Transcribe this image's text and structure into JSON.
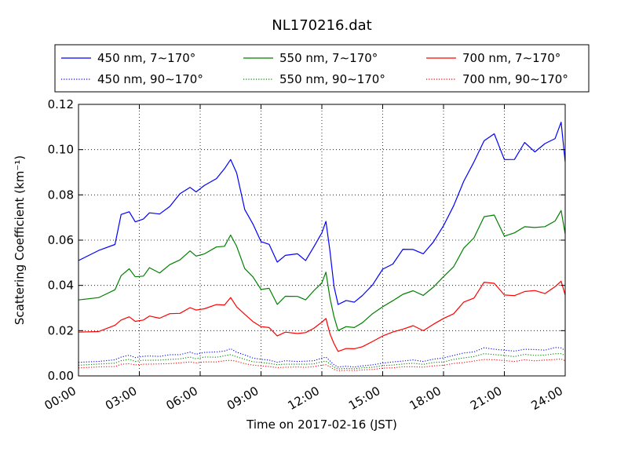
{
  "chart_data": {
    "type": "line",
    "title": "NL170216.dat",
    "xlabel": "Time on 2017-02-16 (JST)",
    "ylabel": "Scattering Coefficient (km⁻¹)",
    "xlim": [
      0,
      24
    ],
    "ylim": [
      0,
      0.12
    ],
    "x_ticks": [
      0,
      3,
      6,
      9,
      12,
      15,
      18,
      21,
      24
    ],
    "x_tick_labels": [
      "00:00",
      "03:00",
      "06:00",
      "09:00",
      "12:00",
      "15:00",
      "18:00",
      "21:00",
      "24:00"
    ],
    "y_ticks": [
      0,
      0.02,
      0.04,
      0.06,
      0.08,
      0.1,
      0.12
    ],
    "y_tick_labels": [
      "0.00",
      "0.02",
      "0.04",
      "0.06",
      "0.08",
      "0.10",
      "0.12"
    ],
    "grid": true,
    "legend_position": "top",
    "x": [
      0,
      1,
      1.8,
      2.1,
      2.5,
      2.8,
      3.2,
      3.5,
      4,
      4.5,
      5,
      5.5,
      5.8,
      6.2,
      6.8,
      7.2,
      7.5,
      7.8,
      8.2,
      8.6,
      9,
      9.4,
      9.8,
      10.2,
      10.8,
      11.2,
      11.6,
      12,
      12.2,
      12.4,
      12.6,
      12.8,
      13.2,
      13.6,
      14,
      14.5,
      15,
      15.5,
      16,
      16.5,
      17,
      17.5,
      18,
      18.5,
      19,
      19.5,
      20,
      20.5,
      21,
      21.5,
      22,
      22.5,
      23,
      23.5,
      23.8,
      24
    ],
    "series": [
      {
        "name": "450 nm, 7∼170°",
        "color": "#0000ff",
        "style": "solid",
        "values": [
          0.051,
          0.055,
          0.059,
          0.07,
          0.074,
          0.067,
          0.07,
          0.072,
          0.071,
          0.076,
          0.079,
          0.085,
          0.08,
          0.085,
          0.087,
          0.091,
          0.097,
          0.088,
          0.075,
          0.066,
          0.06,
          0.058,
          0.05,
          0.054,
          0.053,
          0.052,
          0.056,
          0.064,
          0.068,
          0.055,
          0.04,
          0.031,
          0.034,
          0.032,
          0.036,
          0.04,
          0.047,
          0.05,
          0.055,
          0.057,
          0.053,
          0.06,
          0.066,
          0.075,
          0.087,
          0.093,
          0.106,
          0.105,
          0.097,
          0.095,
          0.103,
          0.1,
          0.101,
          0.107,
          0.11,
          0.096
        ]
      },
      {
        "name": "550 nm, 7∼170°",
        "color": "#008000",
        "style": "solid",
        "values": [
          0.033,
          0.035,
          0.038,
          0.044,
          0.048,
          0.043,
          0.045,
          0.047,
          0.046,
          0.049,
          0.051,
          0.056,
          0.052,
          0.055,
          0.056,
          0.058,
          0.062,
          0.057,
          0.048,
          0.043,
          0.039,
          0.038,
          0.032,
          0.035,
          0.035,
          0.034,
          0.037,
          0.042,
          0.045,
          0.035,
          0.026,
          0.02,
          0.022,
          0.021,
          0.024,
          0.027,
          0.031,
          0.033,
          0.036,
          0.038,
          0.035,
          0.04,
          0.043,
          0.049,
          0.056,
          0.061,
          0.071,
          0.07,
          0.063,
          0.062,
          0.067,
          0.065,
          0.066,
          0.069,
          0.072,
          0.064
        ]
      },
      {
        "name": "700 nm, 7∼170°",
        "color": "#ff0000",
        "style": "solid",
        "values": [
          0.019,
          0.02,
          0.022,
          0.025,
          0.026,
          0.024,
          0.025,
          0.026,
          0.026,
          0.027,
          0.028,
          0.03,
          0.029,
          0.03,
          0.031,
          0.032,
          0.034,
          0.031,
          0.027,
          0.024,
          0.022,
          0.021,
          0.018,
          0.019,
          0.019,
          0.019,
          0.021,
          0.024,
          0.025,
          0.019,
          0.014,
          0.011,
          0.012,
          0.012,
          0.013,
          0.015,
          0.018,
          0.019,
          0.021,
          0.022,
          0.02,
          0.023,
          0.025,
          0.028,
          0.032,
          0.035,
          0.041,
          0.041,
          0.036,
          0.035,
          0.038,
          0.037,
          0.037,
          0.039,
          0.042,
          0.036
        ]
      },
      {
        "name": "450 nm, 90∼170°",
        "color": "#0000ff",
        "style": "dotted",
        "values": [
          0.006,
          0.0065,
          0.007,
          0.0085,
          0.009,
          0.0082,
          0.0086,
          0.0088,
          0.0087,
          0.0092,
          0.0096,
          0.0103,
          0.0097,
          0.0103,
          0.0106,
          0.0111,
          0.0118,
          0.0107,
          0.0091,
          0.008,
          0.0073,
          0.007,
          0.0061,
          0.0066,
          0.0065,
          0.0064,
          0.0068,
          0.0078,
          0.0083,
          0.0067,
          0.0049,
          0.004,
          0.0042,
          0.004,
          0.0044,
          0.0049,
          0.0057,
          0.0061,
          0.0067,
          0.0069,
          0.0065,
          0.0073,
          0.008,
          0.0091,
          0.01,
          0.0108,
          0.0122,
          0.012,
          0.0112,
          0.011,
          0.0118,
          0.0115,
          0.0116,
          0.0123,
          0.0126,
          0.011
        ]
      },
      {
        "name": "550 nm, 90∼170°",
        "color": "#008000",
        "style": "dotted",
        "values": [
          0.0048,
          0.0052,
          0.0056,
          0.0068,
          0.0072,
          0.0065,
          0.0068,
          0.007,
          0.0069,
          0.0073,
          0.0076,
          0.0082,
          0.0077,
          0.0082,
          0.0084,
          0.0088,
          0.0094,
          0.0085,
          0.0072,
          0.0064,
          0.0058,
          0.0056,
          0.0049,
          0.0052,
          0.0052,
          0.0051,
          0.0054,
          0.0062,
          0.0066,
          0.0053,
          0.0039,
          0.0031,
          0.0033,
          0.0032,
          0.0035,
          0.0039,
          0.0045,
          0.0048,
          0.0053,
          0.0055,
          0.0052,
          0.0058,
          0.0063,
          0.0072,
          0.008,
          0.0086,
          0.0097,
          0.0096,
          0.0089,
          0.0087,
          0.0094,
          0.0091,
          0.0092,
          0.0097,
          0.01,
          0.0088
        ]
      },
      {
        "name": "700 nm, 90∼170°",
        "color": "#ff0000",
        "style": "dotted",
        "values": [
          0.0036,
          0.0039,
          0.0042,
          0.0051,
          0.0054,
          0.0049,
          0.0051,
          0.0053,
          0.0052,
          0.0055,
          0.0057,
          0.0062,
          0.0058,
          0.0061,
          0.0063,
          0.0066,
          0.007,
          0.0064,
          0.0054,
          0.0048,
          0.0044,
          0.0042,
          0.0036,
          0.0039,
          0.0039,
          0.0038,
          0.0041,
          0.0047,
          0.005,
          0.004,
          0.0029,
          0.0023,
          0.0025,
          0.0024,
          0.0026,
          0.0029,
          0.0034,
          0.0036,
          0.004,
          0.0041,
          0.0039,
          0.0044,
          0.0048,
          0.0054,
          0.006,
          0.0065,
          0.0073,
          0.0072,
          0.0067,
          0.0065,
          0.007,
          0.0068,
          0.0069,
          0.0073,
          0.0075,
          0.0066
        ]
      }
    ],
    "legend_order": [
      0,
      1,
      2,
      3,
      4,
      5
    ]
  }
}
